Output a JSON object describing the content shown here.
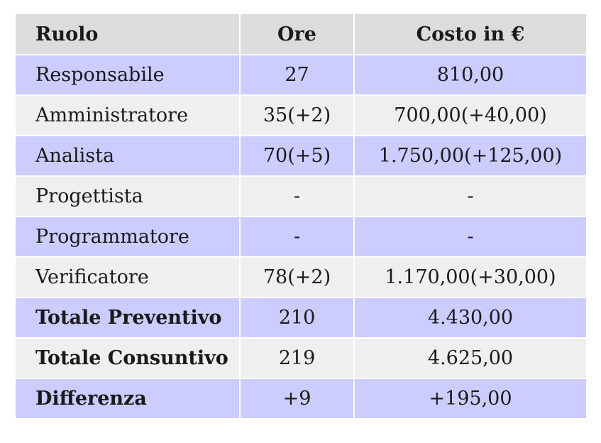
{
  "header": {
    "col_role": "Ruolo",
    "col_hours": "Ore",
    "col_cost": "Costo in €"
  },
  "rows": [
    {
      "role": "Responsabile",
      "hours": "27",
      "cost": "810,00"
    },
    {
      "role": "Amministratore",
      "hours": "35(+2)",
      "cost": "700,00(+40,00)"
    },
    {
      "role": "Analista",
      "hours": "70(+5)",
      "cost": "1.750,00(+125,00)"
    },
    {
      "role": "Progettista",
      "hours": "-",
      "cost": "-"
    },
    {
      "role": "Programmatore",
      "hours": "-",
      "cost": "-"
    },
    {
      "role": "Verificatore",
      "hours": "78(+2)",
      "cost": "1.170,00(+30,00)"
    },
    {
      "role": "Totale Preventivo",
      "hours": "210",
      "cost": "4.430,00"
    },
    {
      "role": "Totale Consuntivo",
      "hours": "219",
      "cost": "4.625,00"
    },
    {
      "role": "Differenza",
      "hours": "+9",
      "cost": "+195,00"
    }
  ]
}
